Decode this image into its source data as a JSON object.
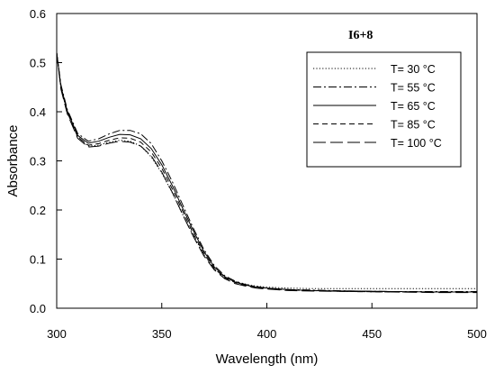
{
  "chart_data": {
    "type": "line",
    "title": "I6+8",
    "xlabel": "Wavelength (nm)",
    "ylabel": "Absorbance",
    "xlim": [
      300,
      500
    ],
    "ylim": [
      0,
      0.6
    ],
    "x_ticks": [
      "300",
      "350",
      "400",
      "450",
      "500"
    ],
    "y_ticks": [
      "0.0",
      "0.1",
      "0.2",
      "0.3",
      "0.4",
      "0.5",
      "0.6"
    ],
    "grid": false,
    "legend_position": "top-right",
    "x": [
      300,
      302,
      305,
      310,
      315,
      320,
      325,
      330,
      335,
      340,
      345,
      350,
      355,
      360,
      365,
      370,
      375,
      380,
      385,
      390,
      395,
      400,
      410,
      420,
      440,
      460,
      480,
      500
    ],
    "series": [
      {
        "name": "T= 30 °C",
        "style": "dotted",
        "values": [
          0.52,
          0.45,
          0.4,
          0.35,
          0.33,
          0.332,
          0.338,
          0.342,
          0.34,
          0.33,
          0.308,
          0.275,
          0.235,
          0.19,
          0.148,
          0.11,
          0.08,
          0.063,
          0.054,
          0.049,
          0.045,
          0.043,
          0.041,
          0.04,
          0.04,
          0.04,
          0.04,
          0.04
        ]
      },
      {
        "name": "T= 55 °C",
        "style": "dashdot",
        "values": [
          0.52,
          0.455,
          0.405,
          0.356,
          0.34,
          0.345,
          0.355,
          0.362,
          0.362,
          0.355,
          0.335,
          0.3,
          0.258,
          0.21,
          0.163,
          0.12,
          0.087,
          0.066,
          0.055,
          0.048,
          0.044,
          0.041,
          0.038,
          0.037,
          0.035,
          0.034,
          0.034,
          0.034
        ]
      },
      {
        "name": "T= 65 °C",
        "style": "solid",
        "values": [
          0.52,
          0.452,
          0.402,
          0.352,
          0.336,
          0.34,
          0.348,
          0.354,
          0.353,
          0.345,
          0.325,
          0.292,
          0.25,
          0.203,
          0.158,
          0.116,
          0.084,
          0.064,
          0.053,
          0.047,
          0.043,
          0.041,
          0.038,
          0.036,
          0.035,
          0.034,
          0.033,
          0.033
        ]
      },
      {
        "name": "T= 85 °C",
        "style": "dashed",
        "values": [
          0.52,
          0.449,
          0.399,
          0.349,
          0.332,
          0.335,
          0.342,
          0.347,
          0.346,
          0.338,
          0.318,
          0.285,
          0.243,
          0.197,
          0.152,
          0.112,
          0.081,
          0.062,
          0.052,
          0.046,
          0.042,
          0.04,
          0.037,
          0.036,
          0.034,
          0.033,
          0.033,
          0.033
        ]
      },
      {
        "name": "T= 100 °C",
        "style": "longdash",
        "values": [
          0.52,
          0.446,
          0.396,
          0.346,
          0.328,
          0.33,
          0.336,
          0.34,
          0.338,
          0.33,
          0.31,
          0.277,
          0.236,
          0.19,
          0.146,
          0.107,
          0.078,
          0.06,
          0.05,
          0.045,
          0.041,
          0.039,
          0.036,
          0.035,
          0.034,
          0.033,
          0.032,
          0.032
        ]
      }
    ]
  }
}
